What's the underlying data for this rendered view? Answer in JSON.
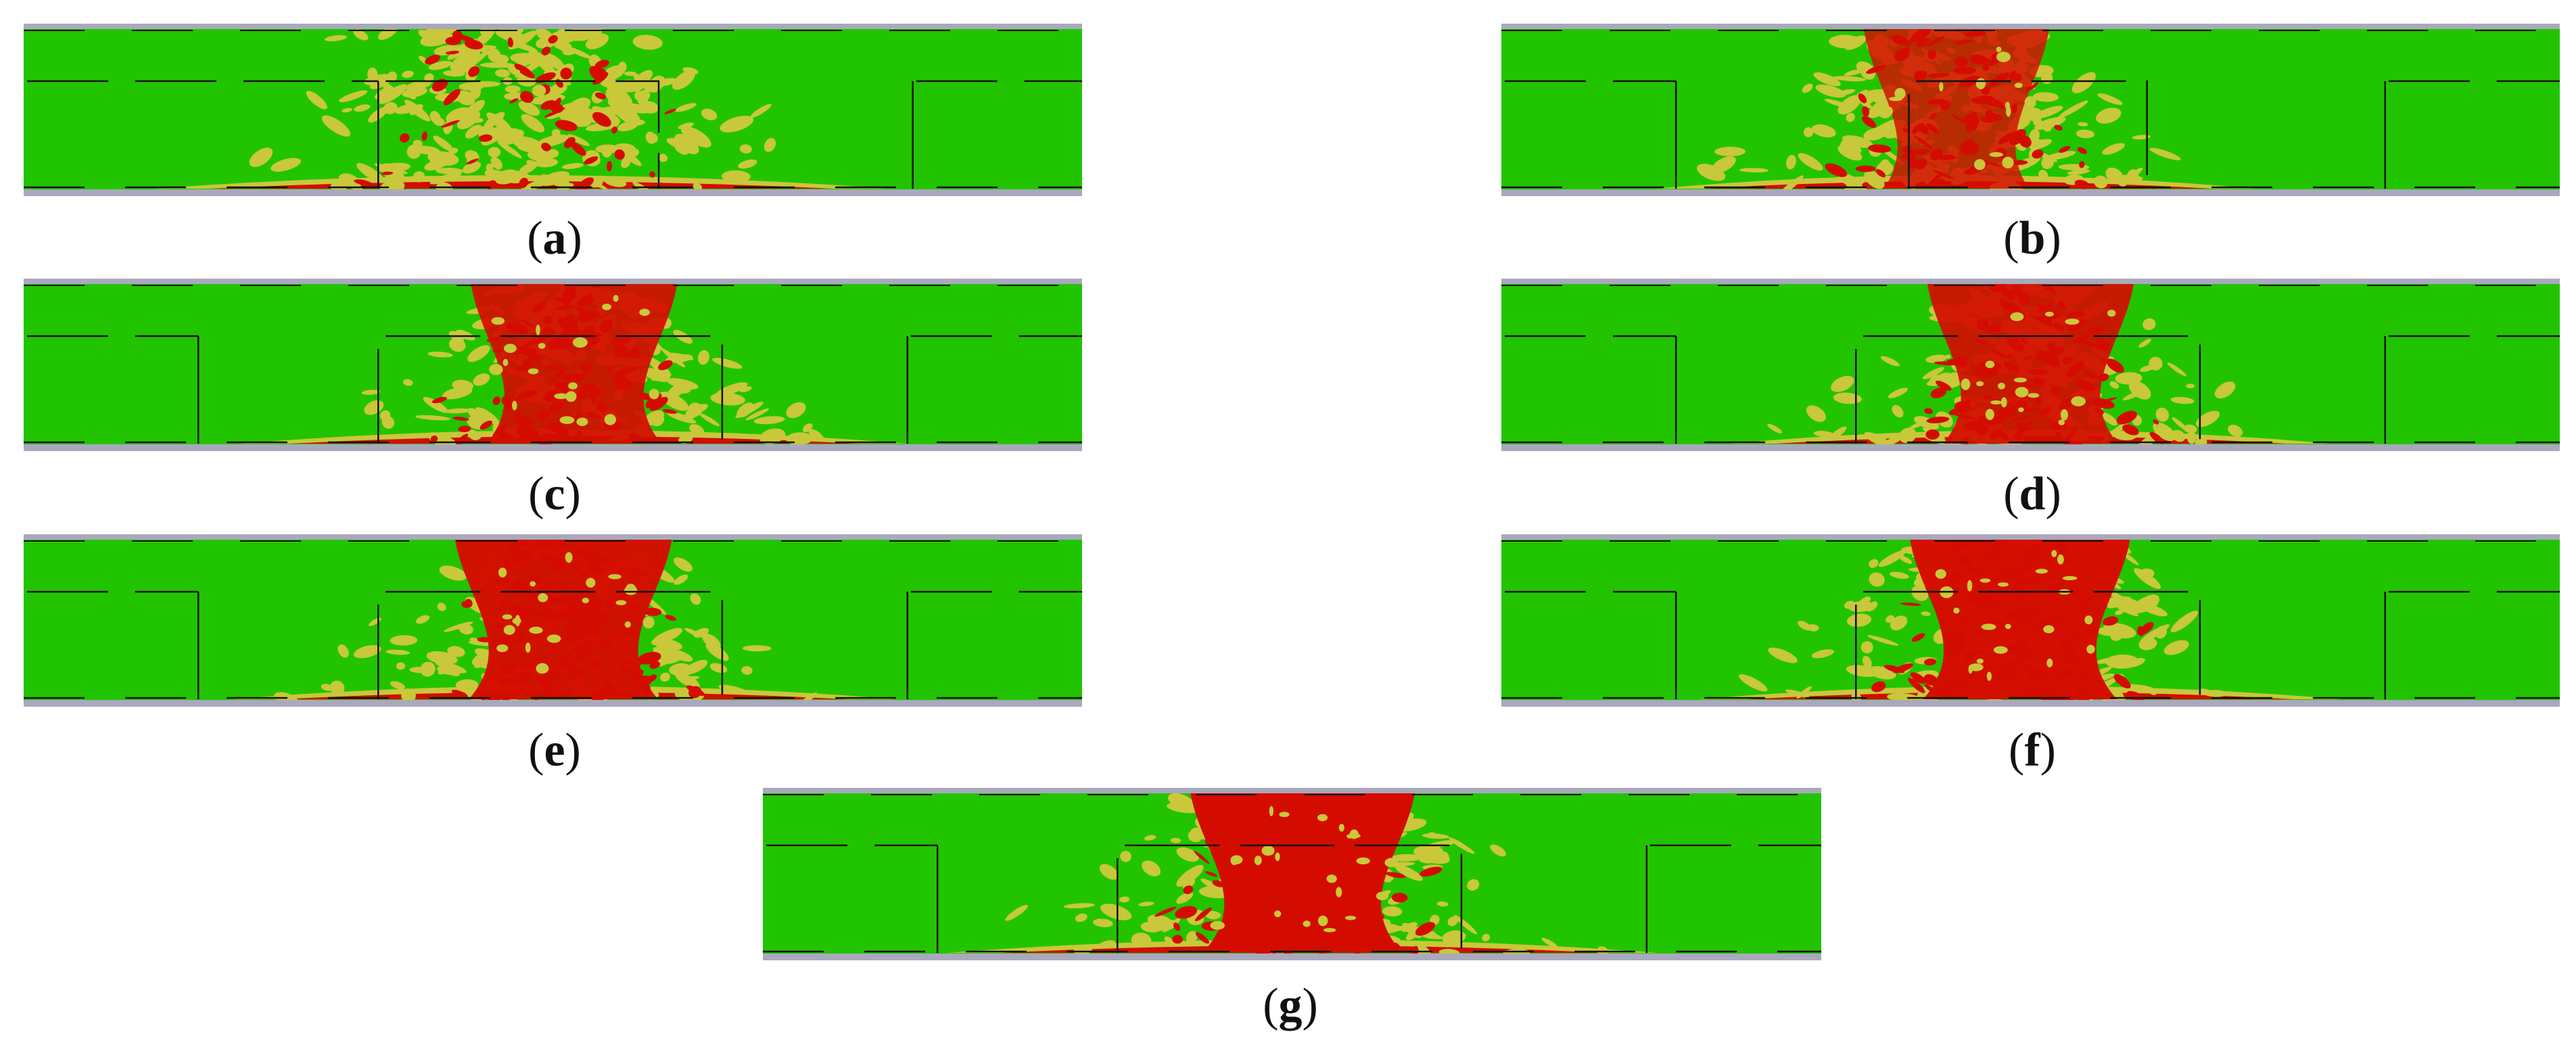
{
  "colors": {
    "background": "#ffffff",
    "sound": "#22c400",
    "partial": "#c8c83a",
    "damaged": "#d40c00",
    "frame_border": "#a9a9bd",
    "outline": "#111111"
  },
  "panels": [
    {
      "id": "a",
      "caption": "a",
      "zone_labels": []
    },
    {
      "id": "b",
      "caption": "b",
      "zone_labels": []
    },
    {
      "id": "c",
      "caption": "c",
      "zone_labels": []
    },
    {
      "id": "d",
      "caption": "d",
      "zone_labels": []
    },
    {
      "id": "e",
      "caption": "e",
      "zone_labels": []
    },
    {
      "id": "f",
      "caption": "f",
      "zone_labels": []
    },
    {
      "id": "g",
      "caption": "g",
      "zone_labels": []
    }
  ]
}
